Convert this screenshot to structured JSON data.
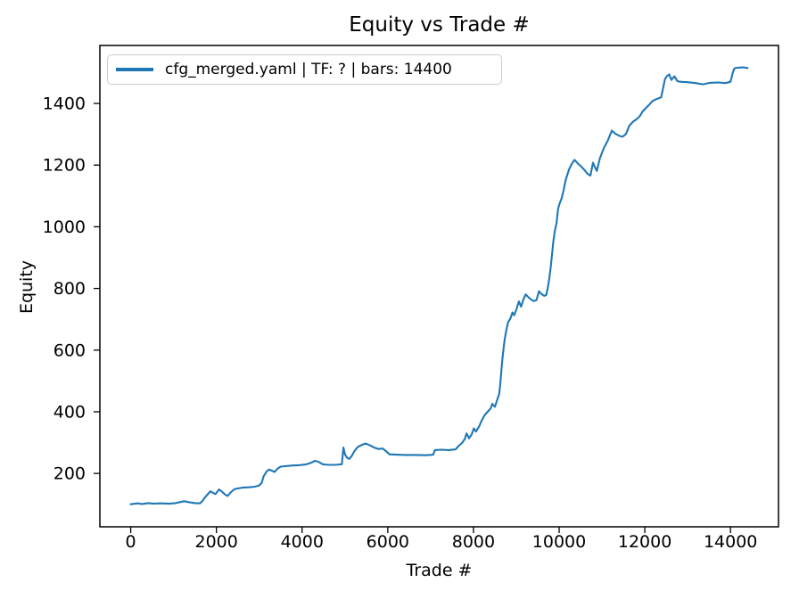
{
  "figure": {
    "background": "#ffffff",
    "frame_color": "#000000",
    "text_color": "#000000"
  },
  "chart_data": {
    "type": "line",
    "title": "Equity vs Trade #",
    "xlabel": "Trade #",
    "ylabel": "Equity",
    "grid": false,
    "xlim": [
      -720,
      15120
    ],
    "ylim": [
      27,
      1588
    ],
    "xticks": [
      0,
      2000,
      4000,
      6000,
      8000,
      10000,
      12000,
      14000
    ],
    "yticks": [
      200,
      400,
      600,
      800,
      1000,
      1200,
      1400
    ],
    "legend": {
      "position": "upper left",
      "entries": [
        {
          "label": "cfg_merged.yaml | TF: ? | bars: 14400",
          "color": "#1f77b4"
        }
      ]
    },
    "series": [
      {
        "name": "cfg_merged.yaml | TF: ? | bars: 14400",
        "color": "#1f77b4",
        "linewidth": 2.1,
        "points": [
          [
            0,
            100
          ],
          [
            160,
            103
          ],
          [
            260,
            101
          ],
          [
            420,
            104
          ],
          [
            540,
            102
          ],
          [
            700,
            103
          ],
          [
            900,
            102
          ],
          [
            1050,
            104
          ],
          [
            1150,
            107
          ],
          [
            1250,
            110
          ],
          [
            1350,
            107
          ],
          [
            1500,
            104
          ],
          [
            1620,
            103
          ],
          [
            1680,
            112
          ],
          [
            1720,
            120
          ],
          [
            1780,
            130
          ],
          [
            1860,
            142
          ],
          [
            1920,
            137
          ],
          [
            1980,
            133
          ],
          [
            2060,
            148
          ],
          [
            2130,
            141
          ],
          [
            2200,
            132
          ],
          [
            2260,
            127
          ],
          [
            2330,
            138
          ],
          [
            2410,
            148
          ],
          [
            2480,
            151
          ],
          [
            2600,
            154
          ],
          [
            2750,
            155
          ],
          [
            2900,
            157
          ],
          [
            3000,
            161
          ],
          [
            3060,
            170
          ],
          [
            3100,
            190
          ],
          [
            3170,
            206
          ],
          [
            3230,
            213
          ],
          [
            3290,
            209
          ],
          [
            3360,
            205
          ],
          [
            3430,
            216
          ],
          [
            3500,
            222
          ],
          [
            3620,
            224
          ],
          [
            3780,
            226
          ],
          [
            3950,
            227
          ],
          [
            4080,
            229
          ],
          [
            4200,
            234
          ],
          [
            4300,
            241
          ],
          [
            4380,
            238
          ],
          [
            4480,
            230
          ],
          [
            4620,
            228
          ],
          [
            4780,
            228
          ],
          [
            4930,
            230
          ],
          [
            4965,
            284
          ],
          [
            5000,
            262
          ],
          [
            5050,
            251
          ],
          [
            5100,
            247
          ],
          [
            5160,
            257
          ],
          [
            5220,
            272
          ],
          [
            5300,
            286
          ],
          [
            5400,
            293
          ],
          [
            5480,
            297
          ],
          [
            5570,
            292
          ],
          [
            5680,
            284
          ],
          [
            5790,
            279
          ],
          [
            5880,
            281
          ],
          [
            5960,
            272
          ],
          [
            6040,
            262
          ],
          [
            6200,
            261
          ],
          [
            6400,
            260
          ],
          [
            6650,
            260
          ],
          [
            6900,
            259
          ],
          [
            7060,
            261
          ],
          [
            7100,
            276
          ],
          [
            7250,
            277
          ],
          [
            7420,
            276
          ],
          [
            7580,
            278
          ],
          [
            7660,
            290
          ],
          [
            7740,
            300
          ],
          [
            7800,
            312
          ],
          [
            7840,
            330
          ],
          [
            7900,
            314
          ],
          [
            7960,
            327
          ],
          [
            8010,
            346
          ],
          [
            8060,
            336
          ],
          [
            8130,
            352
          ],
          [
            8190,
            371
          ],
          [
            8260,
            389
          ],
          [
            8330,
            400
          ],
          [
            8400,
            411
          ],
          [
            8440,
            426
          ],
          [
            8500,
            416
          ],
          [
            8560,
            441
          ],
          [
            8600,
            458
          ],
          [
            8625,
            490
          ],
          [
            8650,
            532
          ],
          [
            8675,
            572
          ],
          [
            8700,
            603
          ],
          [
            8730,
            636
          ],
          [
            8770,
            666
          ],
          [
            8810,
            691
          ],
          [
            8860,
            702
          ],
          [
            8910,
            722
          ],
          [
            8950,
            713
          ],
          [
            9000,
            731
          ],
          [
            9060,
            758
          ],
          [
            9110,
            741
          ],
          [
            9160,
            762
          ],
          [
            9220,
            781
          ],
          [
            9300,
            769
          ],
          [
            9400,
            759
          ],
          [
            9470,
            762
          ],
          [
            9530,
            791
          ],
          [
            9580,
            783
          ],
          [
            9650,
            776
          ],
          [
            9700,
            779
          ],
          [
            9735,
            802
          ],
          [
            9770,
            833
          ],
          [
            9805,
            872
          ],
          [
            9835,
            912
          ],
          [
            9865,
            952
          ],
          [
            9900,
            987
          ],
          [
            9940,
            1012
          ],
          [
            9975,
            1058
          ],
          [
            10010,
            1075
          ],
          [
            10060,
            1093
          ],
          [
            10110,
            1122
          ],
          [
            10150,
            1150
          ],
          [
            10230,
            1186
          ],
          [
            10300,
            1205
          ],
          [
            10360,
            1217
          ],
          [
            10430,
            1206
          ],
          [
            10510,
            1196
          ],
          [
            10580,
            1186
          ],
          [
            10660,
            1172
          ],
          [
            10730,
            1166
          ],
          [
            10790,
            1208
          ],
          [
            10840,
            1192
          ],
          [
            10880,
            1181
          ],
          [
            10950,
            1222
          ],
          [
            11040,
            1254
          ],
          [
            11140,
            1281
          ],
          [
            11230,
            1312
          ],
          [
            11300,
            1303
          ],
          [
            11400,
            1295
          ],
          [
            11480,
            1292
          ],
          [
            11560,
            1301
          ],
          [
            11640,
            1328
          ],
          [
            11730,
            1341
          ],
          [
            11800,
            1348
          ],
          [
            11880,
            1358
          ],
          [
            11950,
            1374
          ],
          [
            12040,
            1387
          ],
          [
            12110,
            1397
          ],
          [
            12180,
            1408
          ],
          [
            12270,
            1414
          ],
          [
            12380,
            1420
          ],
          [
            12430,
            1452
          ],
          [
            12470,
            1479
          ],
          [
            12520,
            1489
          ],
          [
            12570,
            1494
          ],
          [
            12620,
            1476
          ],
          [
            12690,
            1488
          ],
          [
            12760,
            1472
          ],
          [
            12850,
            1470
          ],
          [
            13000,
            1469
          ],
          [
            13180,
            1466
          ],
          [
            13360,
            1462
          ],
          [
            13520,
            1467
          ],
          [
            13700,
            1468
          ],
          [
            13880,
            1466
          ],
          [
            14000,
            1470
          ],
          [
            14050,
            1498
          ],
          [
            14090,
            1514
          ],
          [
            14180,
            1516
          ],
          [
            14280,
            1517
          ],
          [
            14400,
            1515
          ]
        ]
      }
    ]
  }
}
